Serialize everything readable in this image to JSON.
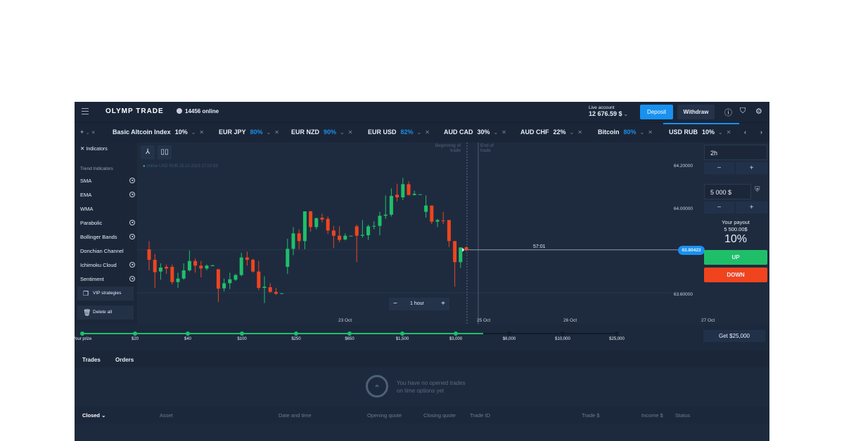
{
  "header": {
    "logo": "OLYMP TRADE",
    "online": "14456 online",
    "account_label": "Live account",
    "balance": "12 676.59 $",
    "deposit": "Deposit",
    "withdraw": "Withdraw"
  },
  "asset_tabs": [
    {
      "name": "Basic Altcoin Index",
      "pct": "10%",
      "blue": false
    },
    {
      "name": "EUR JPY",
      "pct": "80%",
      "blue": true
    },
    {
      "name": "EUR NZD",
      "pct": "90%",
      "blue": true
    },
    {
      "name": "EUR USD",
      "pct": "82%",
      "blue": true
    },
    {
      "name": "AUD CAD",
      "pct": "30%",
      "blue": false
    },
    {
      "name": "AUD CHF",
      "pct": "22%",
      "blue": false
    },
    {
      "name": "Bitcoin",
      "pct": "80%",
      "blue": true
    },
    {
      "name": "USD RUB",
      "pct": "10%",
      "blue": false,
      "active": true
    }
  ],
  "sidebar": {
    "title": "Indicators",
    "section": "Trend Indicators",
    "items": [
      {
        "label": "SMA",
        "check": true
      },
      {
        "label": "EMA",
        "check": true
      },
      {
        "label": "WMA",
        "check": false
      },
      {
        "label": "Parabolic",
        "check": true
      },
      {
        "label": "Bollinger Bands",
        "check": true
      },
      {
        "label": "Donchian Channel",
        "check": false
      },
      {
        "label": "Ichimoku Cloud",
        "check": true
      },
      {
        "label": "Sentiment",
        "check": true
      }
    ],
    "vip": "VIP strategies",
    "delete": "Delete all"
  },
  "chart": {
    "status": "online USD RUB 25.10.2019 17:02:59",
    "beginning": "Beginning of trade",
    "end": "End of trade",
    "y_ticks": [
      "64.20000",
      "64.00000",
      "63.60000"
    ],
    "x_ticks": [
      "23 Oct",
      "25 Oct",
      "26 Oct",
      "27 Oct"
    ],
    "current_price": "63.80423",
    "timer": "57:01",
    "timeframe": "1 hour",
    "colors": {
      "up": "#1fbf6a",
      "down": "#f0441e"
    },
    "candles": [
      [
        63.8067,
        63.8456,
        63.7067,
        63.7567
      ],
      [
        63.7567,
        63.7844,
        63.6233,
        63.6978
      ],
      [
        63.7011,
        63.74,
        63.6622,
        63.72
      ],
      [
        63.7233,
        63.7344,
        63.69,
        63.7156
      ],
      [
        63.7233,
        63.7344,
        63.64,
        63.6511
      ],
      [
        63.6511,
        63.6956,
        63.6233,
        63.6678
      ],
      [
        63.6678,
        63.74,
        63.6622,
        63.7067
      ],
      [
        63.7067,
        63.8011,
        63.7011,
        63.7511
      ],
      [
        63.7511,
        63.7622,
        63.6956,
        63.7289
      ],
      [
        63.7289,
        63.7511,
        63.6733,
        63.7156
      ],
      [
        63.7156,
        63.7344,
        63.7067,
        63.7289
      ],
      [
        63.7267,
        63.7311,
        63.7267,
        63.7311
      ],
      [
        63.7122,
        63.7122,
        63.5567,
        63.62
      ],
      [
        63.6211,
        63.6678,
        63.6067,
        63.6456
      ],
      [
        63.6456,
        63.6956,
        63.6178,
        63.6644
      ],
      [
        63.6622,
        63.69,
        63.6567,
        63.6844
      ],
      [
        63.6844,
        63.79,
        63.6789,
        63.7678
      ],
      [
        63.7678,
        63.7956,
        63.7289,
        63.7567
      ],
      [
        63.7567,
        63.7622,
        63.6956,
        63.7011
      ],
      [
        63.7011,
        63.7511,
        63.6122,
        63.6233
      ],
      [
        63.6233,
        63.6789,
        63.5511,
        63.6289
      ],
      [
        63.6267,
        63.6456,
        63.6011,
        63.6044
      ],
      [
        63.6044,
        63.6233,
        63.59,
        63.5956
      ],
      [
        63.5956,
        63.5978,
        63.5956,
        63.5978
      ],
      [
        63.7233,
        63.8567,
        63.69,
        63.8089
      ],
      [
        63.8089,
        63.9122,
        63.7789,
        63.8822
      ],
      [
        63.8822,
        63.9011,
        63.8067,
        63.8456
      ],
      [
        63.8456,
        63.9867,
        63.8067,
        63.9867
      ],
      [
        63.9867,
        63.99,
        63.89,
        63.9122
      ],
      [
        63.9122,
        63.9567,
        63.9011,
        63.9544
      ],
      [
        63.9567,
        63.9756,
        63.9344,
        63.9478
      ],
      [
        63.9511,
        63.9622,
        63.8789,
        63.8956
      ],
      [
        63.8956,
        63.9178,
        63.8122,
        63.8711
      ],
      [
        63.8711,
        63.9156,
        63.84,
        63.8511
      ],
      [
        63.8533,
        63.8822,
        63.8489,
        63.8711
      ],
      [
        63.8689,
        63.8711,
        63.8689,
        63.8711
      ],
      [
        63.9156,
        63.9233,
        63.7456,
        63.8711
      ],
      [
        63.8711,
        63.9456,
        63.8622,
        63.8756
      ],
      [
        63.8733,
        63.9233,
        63.8511,
        63.9156
      ],
      [
        63.9144,
        63.94,
        63.9011,
        63.9178
      ],
      [
        63.9178,
        63.9844,
        63.8733,
        63.9656
      ],
      [
        63.9656,
        64.0622,
        63.9511,
        63.9711
      ],
      [
        63.9711,
        64.0956,
        63.9622,
        64.06
      ],
      [
        64.0656,
        64.1178,
        64.0344,
        64.0533
      ],
      [
        64.0533,
        64.1456,
        64.04,
        64.1156
      ],
      [
        64.1156,
        64.1289,
        64.0622,
        64.0644
      ],
      [
        64.0644,
        64.0844,
        64.0622,
        64.07
      ],
      [
        64.0656,
        64.0678,
        64.0656,
        64.0678
      ],
      [
        63.9844,
        64.0622,
        63.9567,
        64.0144
      ],
      [
        64.0144,
        64.0144,
        63.9267,
        63.9378
      ],
      [
        63.9378,
        63.9511,
        63.9122,
        63.9456
      ],
      [
        63.9433,
        63.9844,
        63.9267,
        63.9411
      ],
      [
        63.9456,
        63.9456,
        63.8178,
        63.8456
      ],
      [
        63.8456,
        63.8456,
        63.6289,
        63.7456
      ],
      [
        63.7456,
        63.8156,
        63.7178,
        63.8156
      ],
      [
        63.8156,
        63.82,
        63.7978,
        63.8042
      ]
    ]
  },
  "trade_panel": {
    "duration": "2h",
    "amount": "5 000 $",
    "payout_label": "Your payout",
    "payout": "5 500.00$",
    "payout_pct": "10%",
    "up": "UP",
    "down": "DOWN",
    "minus": "−",
    "plus": "+"
  },
  "prize": {
    "items": [
      "Your prize",
      "$20",
      "$40",
      "$100",
      "$250",
      "$650",
      "$1,500",
      "$3,000",
      "$6,000",
      "$10,000",
      "$25,000"
    ],
    "reached_count": 8,
    "progress_pct": 75,
    "get": "Get $25,000"
  },
  "trades": {
    "tabs": [
      "Trades",
      "Orders"
    ],
    "empty_line1": "You have no opened trades",
    "empty_line2": "on time options yet",
    "filter": "Closed",
    "columns": [
      "Asset",
      "Date and time",
      "Opening quote",
      "Closing quote",
      "Trade ID",
      "Trade $",
      "Income $",
      "Status"
    ]
  }
}
